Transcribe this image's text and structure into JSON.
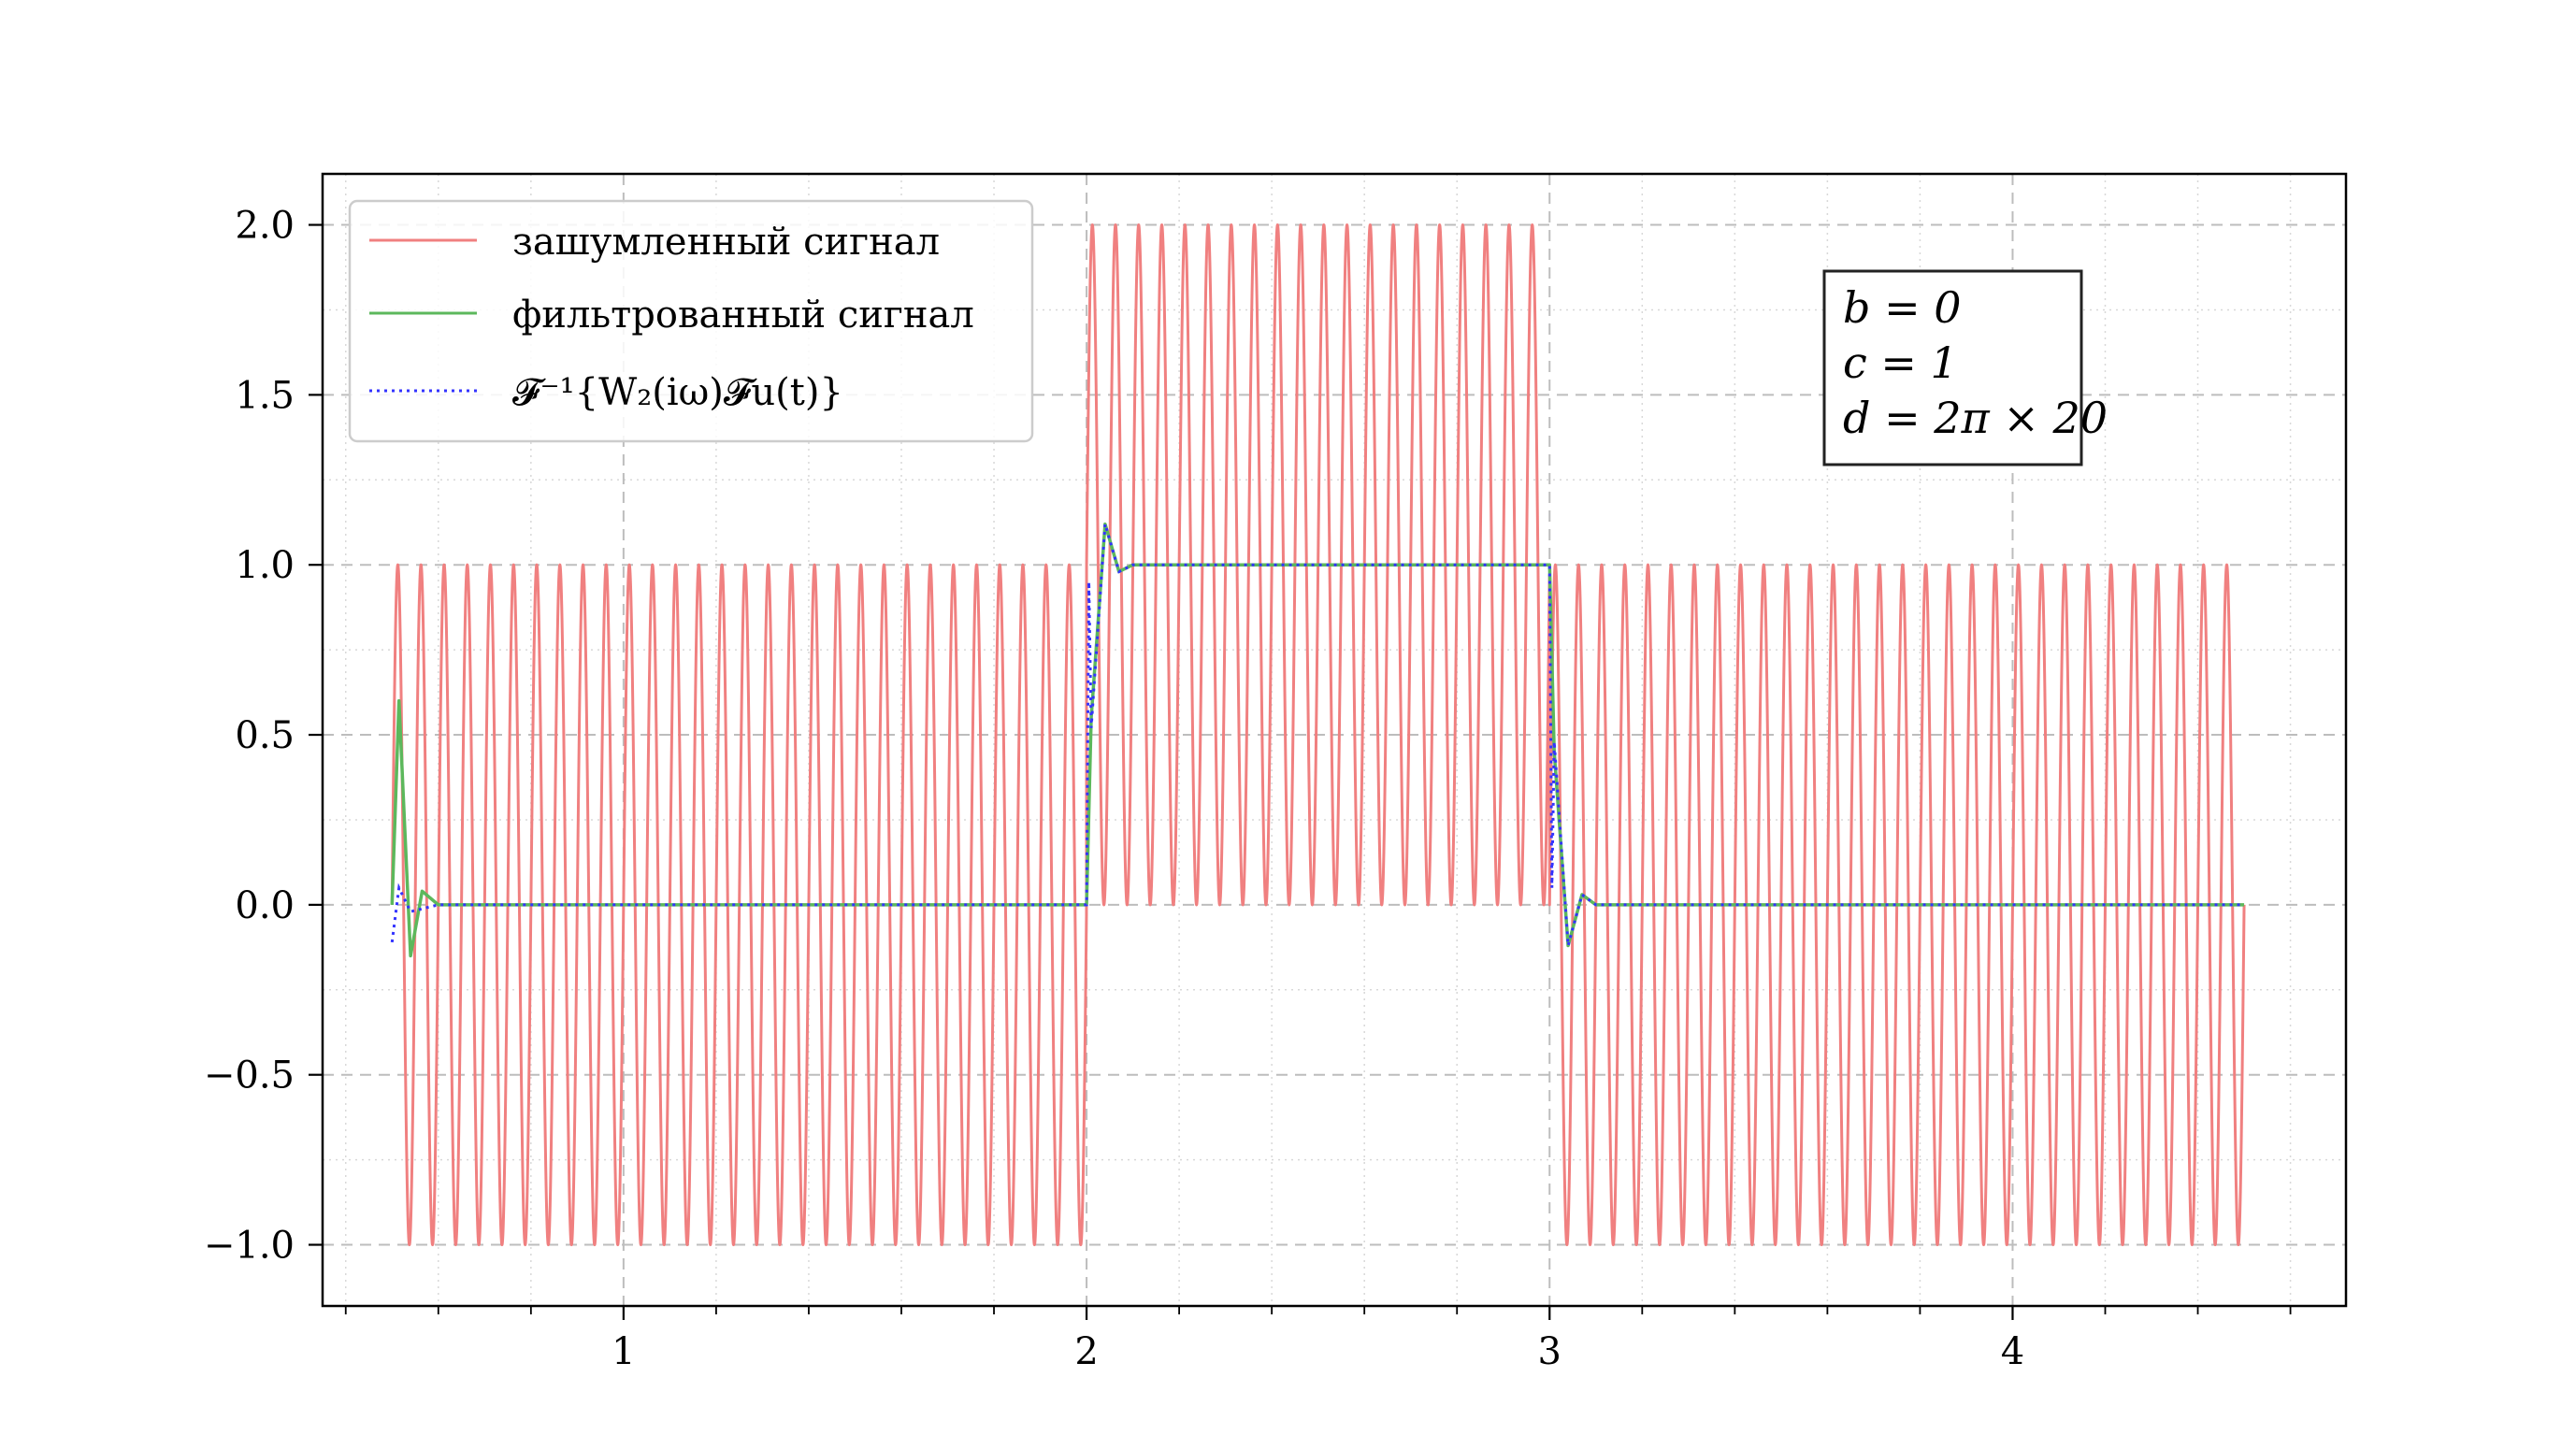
{
  "chart_data": {
    "type": "line",
    "title": "",
    "xlabel": "",
    "ylabel": "",
    "xlim": [
      0.35,
      4.72
    ],
    "ylim": [
      -1.18,
      2.15
    ],
    "grid": true,
    "legend_position": "top-left",
    "x_ticks": [
      1,
      2,
      3,
      4
    ],
    "x_tick_labels": [
      "1",
      "2",
      "3",
      "4"
    ],
    "x_minor_step": 0.2,
    "y_ticks": [
      -1.0,
      -0.5,
      0.0,
      0.5,
      1.0,
      1.5,
      2.0
    ],
    "y_tick_labels": [
      "−1.0",
      "−0.5",
      "0.0",
      "0.5",
      "1.0",
      "1.5",
      "2.0"
    ],
    "series": [
      {
        "name": "зашумленный сигнал",
        "color": "#f08080",
        "style": "solid",
        "description": "square step u(t)=1 on [2,3], 0 elsewhere, plus sinusoidal noise of amplitude 1 and frequency 20 Hz, t from 0.5 to 4.5",
        "t_start": 0.5,
        "t_end": 4.5,
        "step_start": 2.0,
        "step_end": 3.0,
        "noise_amplitude": 1.0,
        "noise_frequency_hz": 20
      },
      {
        "name": "фильтрованный сигнал",
        "color": "#5cb85c",
        "style": "solid",
        "key_points": [
          [
            0.5,
            0.0
          ],
          [
            0.515,
            0.6
          ],
          [
            0.54,
            -0.15
          ],
          [
            0.565,
            0.04
          ],
          [
            0.6,
            0.0
          ],
          [
            2.0,
            0.0
          ],
          [
            2.01,
            0.55
          ],
          [
            2.04,
            1.12
          ],
          [
            2.07,
            0.98
          ],
          [
            2.1,
            1.0
          ],
          [
            3.0,
            1.0
          ],
          [
            3.01,
            0.45
          ],
          [
            3.04,
            -0.12
          ],
          [
            3.07,
            0.03
          ],
          [
            3.1,
            0.0
          ],
          [
            4.5,
            0.0
          ]
        ]
      },
      {
        "name": "𝓕⁻¹{W₂(iω)𝓕u(t)}",
        "color": "#3333ff",
        "style": "dotted",
        "key_points": [
          [
            0.5,
            -0.11
          ],
          [
            0.515,
            0.05
          ],
          [
            0.54,
            -0.02
          ],
          [
            0.6,
            0.0
          ],
          [
            2.0,
            0.0
          ],
          [
            2.005,
            0.95
          ],
          [
            2.01,
            0.52
          ],
          [
            2.04,
            1.12
          ],
          [
            2.07,
            0.98
          ],
          [
            2.1,
            1.0
          ],
          [
            3.0,
            1.0
          ],
          [
            3.005,
            0.05
          ],
          [
            3.01,
            0.48
          ],
          [
            3.04,
            -0.12
          ],
          [
            3.07,
            0.03
          ],
          [
            3.1,
            0.0
          ],
          [
            4.5,
            0.0
          ]
        ]
      }
    ],
    "legend": [
      "зашумленный сигнал",
      "фильтрованный сигнал",
      "𝓕⁻¹{W₂(iω)𝓕u(t)}"
    ],
    "annotation_lines": [
      "b = 0",
      "c = 1",
      "d = 2π × 20"
    ]
  }
}
